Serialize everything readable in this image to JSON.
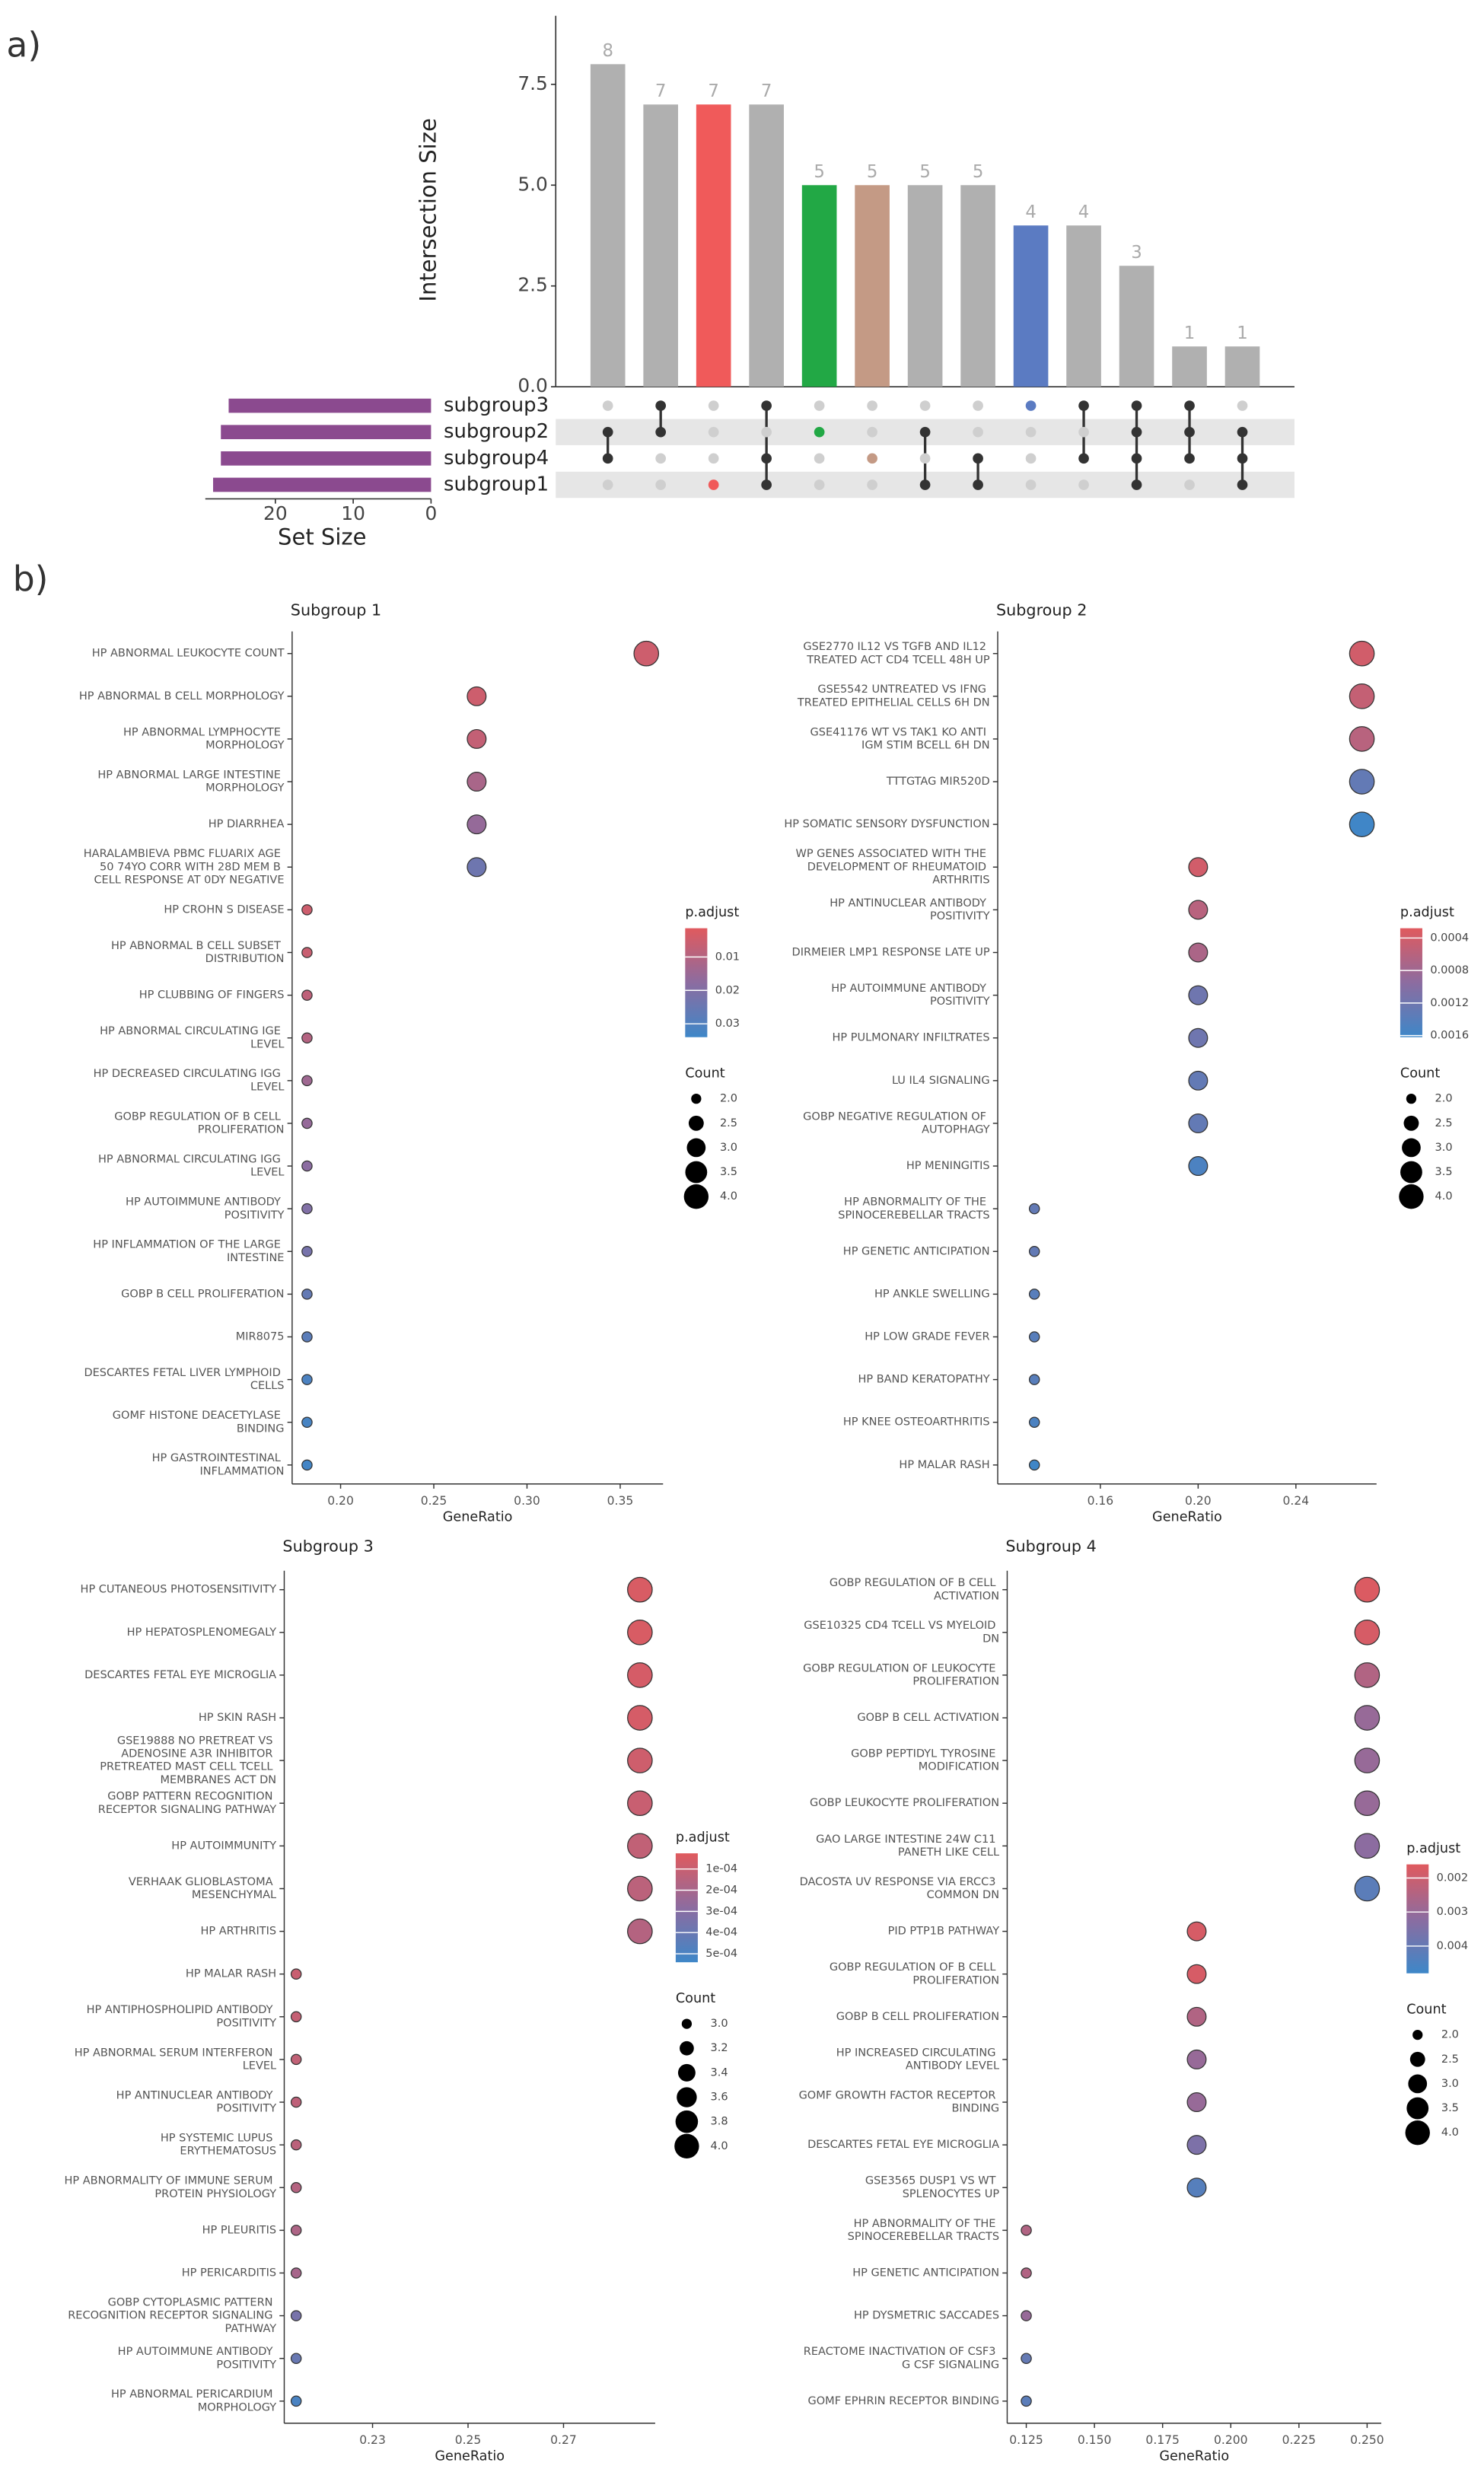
{
  "panel_labels": [
    "a)",
    "b)"
  ],
  "chart_data": [
    {
      "type": "upset",
      "ylabel": "Intersection Size",
      "values": [
        8,
        7,
        7,
        7,
        5,
        5,
        5,
        5,
        4,
        4,
        3,
        1,
        1
      ],
      "colors": [
        "#b0b0b0",
        "#b0b0b0",
        "#f05a5a",
        "#b0b0b0",
        "#22a845",
        "#c49a85",
        "#b0b0b0",
        "#b0b0b0",
        "#5b7bc2",
        "#b0b0b0",
        "#b0b0b0",
        "#b0b0b0",
        "#b0b0b0"
      ],
      "base_color": "#b0b0b0",
      "dot_color": "#333333",
      "ylim": [
        0,
        9.2
      ],
      "yticks": [
        {
          "value": 0,
          "label": "0.0"
        },
        2.5,
        {
          "value": 5,
          "label": "5.0"
        },
        7.5
      ],
      "sets": [
        "subgroup3",
        "subgroup2",
        "subgroup4",
        "subgroup1"
      ],
      "set_sizes": [
        26,
        27,
        27,
        28
      ],
      "set_color": "#8b4a8f",
      "set_xlim": [
        0,
        29
      ],
      "set_xticks": [
        0,
        10,
        20
      ],
      "set_xlabel": "Set Size",
      "membership": [
        [
          0,
          1,
          0,
          1,
          0,
          0,
          0,
          0,
          1,
          1,
          1,
          1,
          0
        ],
        [
          1,
          1,
          0,
          0,
          1,
          0,
          1,
          0,
          0,
          0,
          1,
          1,
          1
        ],
        [
          1,
          0,
          0,
          1,
          0,
          1,
          0,
          1,
          0,
          1,
          1,
          1,
          1
        ],
        [
          0,
          0,
          1,
          1,
          0,
          0,
          1,
          1,
          0,
          0,
          1,
          0,
          1
        ]
      ]
    },
    {
      "type": "dot",
      "title": "Subgroup 1",
      "x_label": "GeneRatio",
      "color_label": "p.adjust",
      "size_label": "Count",
      "categories": [
        "HP ABNORMAL LEUKOCYTE COUNT",
        "HP ABNORMAL B CELL MORPHOLOGY",
        "HP ABNORMAL LYMPHOCYTE MORPHOLOGY",
        "HP ABNORMAL LARGE INTESTINE MORPHOLOGY",
        "HP DIARRHEA",
        "HARALAMBIEVA PBMC FLUARIX AGE 50 74YO CORR WITH 28D MEM B CELL RESPONSE AT 0DY NEGATIVE",
        "HP CROHN S DISEASE",
        "HP ABNORMAL B CELL SUBSET DISTRIBUTION",
        "HP CLUBBING OF FINGERS",
        "HP ABNORMAL CIRCULATING IGE LEVEL",
        "HP DECREASED CIRCULATING IGG LEVEL",
        "GOBP REGULATION OF B CELL PROLIFERATION",
        "HP ABNORMAL CIRCULATING IGG LEVEL",
        "HP AUTOIMMUNE ANTIBODY POSITIVITY",
        "HP INFLAMMATION OF THE LARGE INTESTINE",
        "GOBP B CELL PROLIFERATION",
        "MIR8075",
        "DESCARTES FETAL LIVER LYMPHOID CELLS",
        "GOMF HISTONE DEACETYLASE BINDING",
        "HP GASTROINTESTINAL INFLAMMATION"
      ],
      "x": [
        0.364,
        0.273,
        0.273,
        0.273,
        0.273,
        0.273,
        0.182,
        0.182,
        0.182,
        0.182,
        0.182,
        0.182,
        0.182,
        0.182,
        0.182,
        0.182,
        0.182,
        0.182,
        0.182,
        0.182
      ],
      "size": [
        4,
        3,
        3,
        3,
        3,
        3,
        2,
        2,
        2,
        2,
        2,
        2,
        2,
        2,
        2,
        2,
        2,
        2,
        2,
        2
      ],
      "p_adjust": [
        0.005,
        0.005,
        0.007,
        0.012,
        0.016,
        0.024,
        0.005,
        0.006,
        0.008,
        0.01,
        0.014,
        0.016,
        0.018,
        0.02,
        0.022,
        0.026,
        0.028,
        0.031,
        0.032,
        0.033
      ],
      "xlim": [
        0.174,
        0.373
      ],
      "xticks": [
        {
          "value": 0.2,
          "label": "0.20"
        },
        0.25,
        {
          "value": 0.3,
          "label": "0.30"
        },
        0.35
      ],
      "clim": [
        0.0014,
        0.034
      ],
      "cticks": [
        0.01,
        0.02,
        0.03
      ],
      "colors": [
        "#e05a5e",
        "#8c6ca0",
        "#3e87c8"
      ],
      "sizelim": [
        2,
        4
      ],
      "sizeticks": [
        {
          "value": 2,
          "label": "2.0"
        },
        2.5,
        {
          "value": 3,
          "label": "3.0"
        },
        3.5,
        {
          "value": 4,
          "label": "4.0"
        }
      ]
    },
    {
      "type": "dot",
      "title": "Subgroup 2",
      "x_label": "GeneRatio",
      "color_label": "p.adjust",
      "size_label": "Count",
      "categories": [
        "GSE2770 IL12 VS TGFB AND IL12 TREATED ACT CD4 TCELL 48H UP",
        "GSE5542 UNTREATED VS IFNG TREATED EPITHELIAL CELLS 6H DN",
        "GSE41176 WT VS TAK1 KO ANTI IGM STIM BCELL 6H DN",
        "TTTGTAG MIR520D",
        "HP SOMATIC SENSORY DYSFUNCTION",
        "WP GENES ASSOCIATED WITH THE DEVELOPMENT OF RHEUMATOID ARTHRITIS",
        "HP ANTINUCLEAR ANTIBODY POSITIVITY",
        "DIRMEIER LMP1 RESPONSE LATE UP",
        "HP AUTOIMMUNE ANTIBODY POSITIVITY",
        "HP PULMONARY INFILTRATES",
        "LU IL4 SIGNALING",
        "GOBP NEGATIVE REGULATION OF AUTOPHAGY",
        "HP MENINGITIS",
        "HP ABNORMALITY OF THE SPINOCEREBELLAR TRACTS",
        "HP GENETIC ANTICIPATION",
        "HP ANKLE SWELLING",
        "HP LOW GRADE FEVER",
        "HP BAND KERATOPATHY",
        "HP KNEE OSTEOARTHRITIS",
        "HP MALAR RASH"
      ],
      "x": [
        0.267,
        0.267,
        0.267,
        0.267,
        0.267,
        0.2,
        0.2,
        0.2,
        0.2,
        0.2,
        0.2,
        0.2,
        0.2,
        0.133,
        0.133,
        0.133,
        0.133,
        0.133,
        0.133,
        0.133
      ],
      "size": [
        4,
        4,
        4,
        4,
        4,
        3,
        3,
        3,
        3,
        3,
        3,
        3,
        3,
        2,
        2,
        2,
        2,
        2,
        2,
        2
      ],
      "p_adjust": [
        0.0004,
        0.0005,
        0.0006,
        0.0013,
        0.0016,
        0.0004,
        0.0006,
        0.0007,
        0.0012,
        0.0012,
        0.0013,
        0.0013,
        0.0015,
        0.0013,
        0.0013,
        0.0014,
        0.0014,
        0.0014,
        0.0015,
        0.0016
      ],
      "xlim": [
        0.118,
        0.273
      ],
      "xticks": [
        0.16,
        {
          "value": 0.2,
          "label": "0.20"
        },
        0.24
      ],
      "clim": [
        0.00028,
        0.00162
      ],
      "cticks": [
        0.0004,
        0.0008,
        0.0012,
        0.0016
      ],
      "colors": [
        "#e05a5e",
        "#8c6ca0",
        "#3e87c8"
      ],
      "sizelim": [
        2,
        4
      ],
      "sizeticks": [
        {
          "value": 2,
          "label": "2.0"
        },
        2.5,
        {
          "value": 3,
          "label": "3.0"
        },
        3.5,
        {
          "value": 4,
          "label": "4.0"
        }
      ]
    },
    {
      "type": "dot",
      "title": "Subgroup 3",
      "x_label": "GeneRatio",
      "color_label": "p.adjust",
      "size_label": "Count",
      "categories": [
        "HP CUTANEOUS PHOTOSENSITIVITY",
        "HP HEPATOSPLENOMEGALY",
        "DESCARTES FETAL EYE MICROGLIA",
        "HP SKIN RASH",
        "GSE19888 NO PRETREAT VS ADENOSINE A3R INHIBITOR PRETREATED MAST CELL TCELL MEMBRANES ACT DN",
        "GOBP PATTERN RECOGNITION RECEPTOR SIGNALING PATHWAY",
        "HP AUTOIMMUNITY",
        "VERHAAK GLIOBLASTOMA MESENCHYMAL",
        "HP ARTHRITIS",
        "HP MALAR RASH",
        "HP ANTIPHOSPHOLIPID ANTIBODY POSITIVITY",
        "HP ABNORMAL SERUM INTERFERON LEVEL",
        "HP ANTINUCLEAR ANTIBODY POSITIVITY",
        "HP SYSTEMIC LUPUS ERYTHEMATOSUS",
        "HP ABNORMALITY OF IMMUNE SERUM PROTEIN PHYSIOLOGY",
        "HP PLEURITIS",
        "HP PERICARDITIS",
        "GOBP CYTOPLASMIC PATTERN RECOGNITION RECEPTOR SIGNALING PATHWAY",
        "HP AUTOIMMUNE ANTIBODY POSITIVITY",
        "HP ABNORMAL PERICARDIUM MORPHOLOGY"
      ],
      "x": [
        0.286,
        0.286,
        0.286,
        0.286,
        0.286,
        0.286,
        0.286,
        0.286,
        0.286,
        0.214,
        0.214,
        0.214,
        0.214,
        0.214,
        0.214,
        0.214,
        0.214,
        0.214,
        0.214,
        0.214
      ],
      "size": [
        4,
        4,
        4,
        4,
        4,
        4,
        4,
        4,
        4,
        3,
        3,
        3,
        3,
        3,
        3,
        3,
        3,
        3,
        3,
        3
      ],
      "p_adjust": [
        5e-05,
        5e-05,
        6e-05,
        6e-05,
        8e-05,
        0.0001,
        0.00012,
        0.00014,
        0.00016,
        0.0001,
        0.00011,
        0.00012,
        0.00013,
        0.00014,
        0.00016,
        0.00018,
        0.0002,
        0.00035,
        0.0004,
        0.0005
      ],
      "xlim": [
        0.2115,
        0.2892
      ],
      "xticks": [
        0.23,
        0.25,
        0.27
      ],
      "clim": [
        2.6e-05,
        0.00054
      ],
      "cticks": [
        {
          "value": 0.0001,
          "label": "1e-04"
        },
        {
          "value": 0.0002,
          "label": "2e-04"
        },
        {
          "value": 0.0003,
          "label": "3e-04"
        },
        {
          "value": 0.0004,
          "label": "4e-04"
        },
        {
          "value": 0.0005,
          "label": "5e-04"
        }
      ],
      "colors": [
        "#e05a5e",
        "#8c6ca0",
        "#3e87c8"
      ],
      "sizelim": [
        3,
        4
      ],
      "sizeticks": [
        {
          "value": 3,
          "label": "3.0"
        },
        3.2,
        3.4,
        3.6,
        3.8,
        {
          "value": 4,
          "label": "4.0"
        }
      ]
    },
    {
      "type": "dot",
      "title": "Subgroup 4",
      "x_label": "GeneRatio",
      "color_label": "p.adjust",
      "size_label": "Count",
      "categories": [
        "GOBP REGULATION OF B CELL ACTIVATION",
        "GSE10325 CD4 TCELL VS MYELOID DN",
        "GOBP REGULATION OF LEUKOCYTE PROLIFERATION",
        "GOBP B CELL ACTIVATION",
        "GOBP PEPTIDYL TYROSINE MODIFICATION",
        "GOBP LEUKOCYTE PROLIFERATION",
        "GAO LARGE INTESTINE 24W C11 PANETH LIKE CELL",
        "DACOSTA UV RESPONSE VIA ERCC3 COMMON DN",
        "PID PTP1B PATHWAY",
        "GOBP REGULATION OF B CELL PROLIFERATION",
        "GOBP B CELL PROLIFERATION",
        "HP INCREASED CIRCULATING ANTIBODY LEVEL",
        "GOMF GROWTH FACTOR RECEPTOR BINDING",
        "DESCARTES FETAL EYE MICROGLIA",
        "GSE3565 DUSP1 VS WT SPLENOCYTES UP",
        "HP ABNORMALITY OF THE SPINOCEREBELLAR TRACTS",
        "HP GENETIC ANTICIPATION",
        "HP DYSMETRIC SACCADES",
        "REACTOME INACTIVATION OF CSF3 G CSF SIGNALING",
        "GOMF EPHRIN RECEPTOR BINDING"
      ],
      "x": [
        0.25,
        0.25,
        0.25,
        0.25,
        0.25,
        0.25,
        0.25,
        0.25,
        0.1875,
        0.1875,
        0.1875,
        0.1875,
        0.1875,
        0.1875,
        0.1875,
        0.125,
        0.125,
        0.125,
        0.125,
        0.125
      ],
      "size": [
        4,
        4,
        4,
        4,
        4,
        4,
        4,
        4,
        3,
        3,
        3,
        3,
        3,
        3,
        3,
        2,
        2,
        2,
        2,
        2
      ],
      "p_adjust": [
        0.0017,
        0.0018,
        0.0025,
        0.003,
        0.003,
        0.003,
        0.0032,
        0.0042,
        0.0018,
        0.0018,
        0.0025,
        0.003,
        0.003,
        0.0035,
        0.0043,
        0.0025,
        0.0025,
        0.003,
        0.004,
        0.0042
      ],
      "xlim": [
        0.118,
        0.2552
      ],
      "xticks": [
        0.125,
        {
          "value": 0.15,
          "label": "0.150"
        },
        0.175,
        {
          "value": 0.2,
          "label": "0.200"
        },
        0.225,
        {
          "value": 0.25,
          "label": "0.250"
        }
      ],
      "clim": [
        0.0016,
        0.0048
      ],
      "cticks": [
        0.002,
        0.003,
        0.004
      ],
      "colors": [
        "#e05a5e",
        "#8c6ca0",
        "#3e87c8"
      ],
      "sizelim": [
        2,
        4
      ],
      "sizeticks": [
        {
          "value": 2,
          "label": "2.0"
        },
        2.5,
        {
          "value": 3,
          "label": "3.0"
        },
        3.5,
        {
          "value": 4,
          "label": "4.0"
        }
      ]
    }
  ]
}
